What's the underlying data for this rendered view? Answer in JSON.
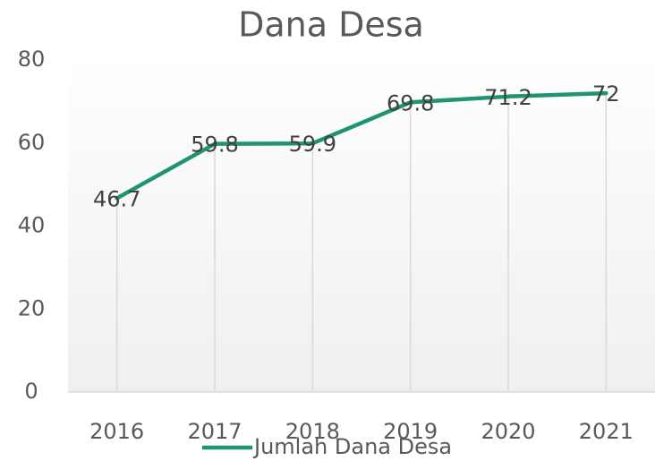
{
  "chart_data": {
    "type": "line",
    "title": "Dana Desa",
    "categories": [
      "2016",
      "2017",
      "2018",
      "2019",
      "2020",
      "2021"
    ],
    "series": [
      {
        "name": "Jumlah Dana Desa",
        "color": "#1e9474",
        "values": [
          46.7,
          59.8,
          59.9,
          69.8,
          71.2,
          72
        ]
      }
    ],
    "ylim": [
      0,
      80
    ],
    "yticks": [
      0,
      20,
      40,
      60,
      80
    ],
    "drop_lines": true,
    "data_labels": true,
    "legend": "bottom"
  }
}
